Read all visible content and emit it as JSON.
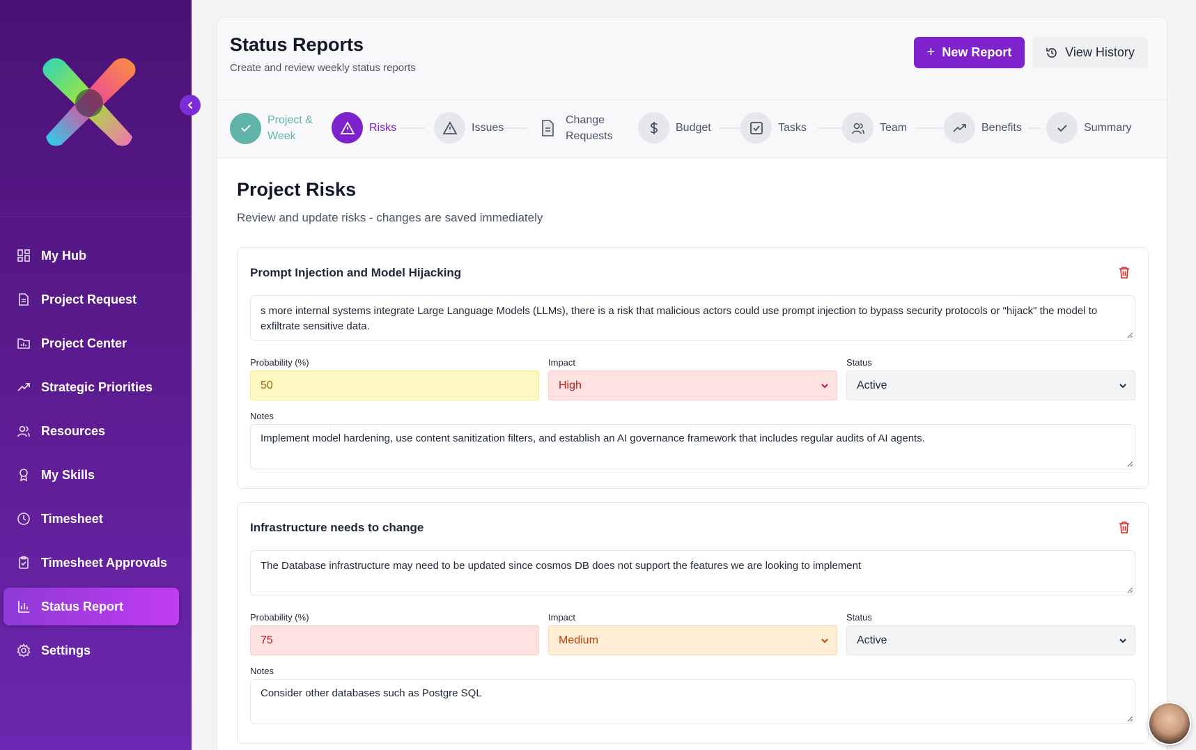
{
  "sidebar": {
    "items": [
      {
        "label": "My Hub",
        "icon": "grid-icon"
      },
      {
        "label": "Project Request",
        "icon": "document-icon"
      },
      {
        "label": "Project Center",
        "icon": "folder-chart-icon"
      },
      {
        "label": "Strategic Priorities",
        "icon": "trend-up-icon"
      },
      {
        "label": "Resources",
        "icon": "users-icon"
      },
      {
        "label": "My Skills",
        "icon": "award-icon"
      },
      {
        "label": "Timesheet",
        "icon": "clock-icon"
      },
      {
        "label": "Timesheet Approvals",
        "icon": "clipboard-check-icon"
      },
      {
        "label": "Status Report",
        "icon": "bar-chart-icon",
        "active": true
      },
      {
        "label": "Settings",
        "icon": "gear-icon"
      }
    ]
  },
  "header": {
    "title": "Status Reports",
    "subtitle": "Create and review weekly status reports",
    "new_report": "New Report",
    "view_history": "View History"
  },
  "steps": [
    {
      "label_line1": "Project &",
      "label_line2": "Week",
      "state": "done"
    },
    {
      "label_line1": "Risks",
      "state": "current"
    },
    {
      "label_line1": "Issues",
      "state": "pending"
    },
    {
      "label_line1": "Change",
      "label_line2": "Requests",
      "state": "pending"
    },
    {
      "label_line1": "Budget",
      "state": "pending"
    },
    {
      "label_line1": "Tasks",
      "state": "pending"
    },
    {
      "label_line1": "Team",
      "state": "pending"
    },
    {
      "label_line1": "Benefits",
      "state": "pending"
    },
    {
      "label_line1": "Summary",
      "state": "pending"
    }
  ],
  "section": {
    "title": "Project Risks",
    "subtitle": "Review and update risks - changes are saved immediately"
  },
  "labels": {
    "probability": "Probability (%)",
    "impact": "Impact",
    "status": "Status",
    "notes": "Notes"
  },
  "risks": [
    {
      "title": "Prompt Injection and Model Hijacking",
      "description": "s more internal systems integrate Large Language Models (LLMs), there is a risk that malicious actors could use prompt injection to bypass security protocols or \"hijack\" the model to exfiltrate sensitive data.",
      "probability": "50",
      "impact": "High",
      "status": "Active",
      "notes": "Implement model hardening, use content sanitization filters, and establish an AI governance framework that includes regular audits of AI agents."
    },
    {
      "title": "Infrastructure needs to change",
      "description": "The Database infrastructure may need to be updated  since cosmos DB does not support the features we are looking to implement",
      "probability": "75",
      "impact": "Medium",
      "status": "Active",
      "notes": "Consider other databases such as Postgre SQL"
    }
  ],
  "colors": {
    "brand": "#7e22ce",
    "done": "#5fb3a8",
    "danger": "#dc2626"
  }
}
